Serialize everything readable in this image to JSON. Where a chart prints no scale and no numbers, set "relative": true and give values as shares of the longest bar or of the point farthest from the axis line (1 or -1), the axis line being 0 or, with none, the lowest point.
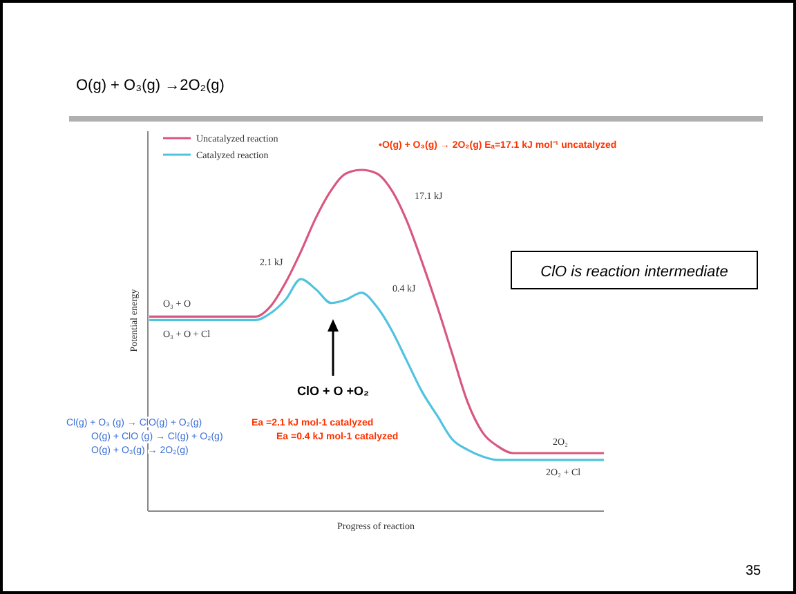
{
  "chart_data": {
    "type": "line",
    "title": "O(g) + O₃(g) →2O₂(g)",
    "xlabel": "Progress of reaction",
    "ylabel": "Potential energy",
    "relative": true,
    "legend": "top left",
    "marker": "none",
    "line_style": "solid",
    "grid": false,
    "categories": [
      null,
      null,
      null,
      null,
      null,
      null,
      null,
      null,
      null,
      null,
      null,
      null,
      null,
      null,
      null,
      null,
      null,
      null,
      null,
      null,
      null,
      null,
      null,
      null,
      null,
      null,
      null,
      null,
      null,
      null,
      null
    ],
    "series": [
      {
        "name": "Uncatalyzed reaction",
        "color": "#d9577f",
        "values": [
          0.57,
          0.57,
          0.57,
          0.57,
          0.57,
          0.57,
          0.57,
          0.57,
          0.6,
          0.67,
          0.76,
          0.86,
          0.94,
          0.99,
          1,
          0.99,
          0.94,
          0.85,
          0.73,
          0.6,
          0.46,
          0.32,
          0.23,
          0.19,
          0.17,
          0.17,
          0.17,
          0.17,
          0.17,
          0.17,
          0.17
        ]
      },
      {
        "name": "Catalyzed reaction",
        "color": "#4fc3e0",
        "values": [
          0.56,
          0.56,
          0.56,
          0.56,
          0.56,
          0.56,
          0.56,
          0.56,
          0.58,
          0.62,
          0.68,
          0.65,
          0.61,
          0.62,
          0.64,
          0.6,
          0.53,
          0.44,
          0.35,
          0.28,
          0.21,
          0.18,
          0.16,
          0.15,
          0.15,
          0.15,
          0.15,
          0.15,
          0.15,
          0.15,
          0.15
        ]
      }
    ],
    "annotations": [
      "O₃ + O",
      "O₃ + O + Cl",
      "2.1 kJ",
      "17.1 kJ",
      "0.4 kJ",
      "2O₂",
      "2O₂ + Cl",
      "•O(g) + O₃(g) → 2O₂(g)     Eₐ=17.1 kJ mol⁻¹ uncatalyzed",
      "ClO is reaction intermediate",
      "ClO + O +O₂",
      "Cl(g) + O₃  (g) → ClO(g) + O₂(g)",
      "O(g) + ClO (g) → Cl(g)   + O₂(g)",
      "O(g) + O₃(g)    → 2O₂(g)",
      "Ea =2.1 kJ mol-1 catalyzed",
      "Ea =0.4 kJ mol-1 catalyzed",
      "35"
    ]
  }
}
